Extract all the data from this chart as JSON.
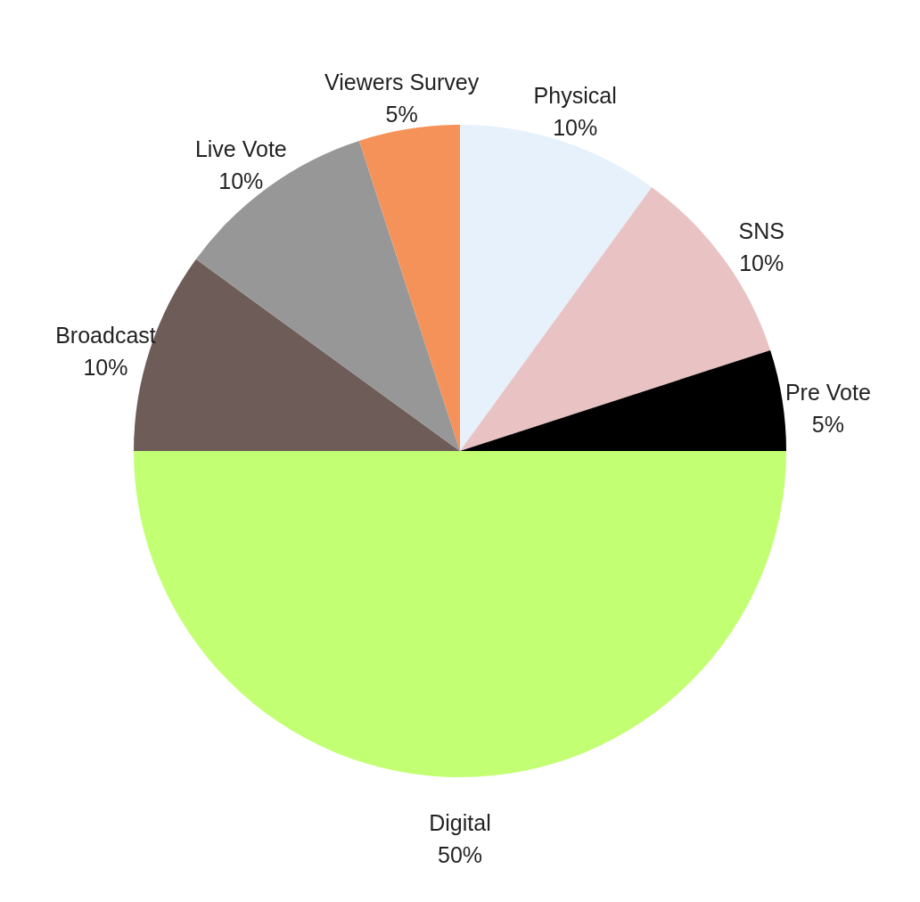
{
  "chart_data": {
    "type": "pie",
    "categories": [
      "Physical",
      "SNS",
      "Pre Vote",
      "Digital",
      "Broadcast",
      "Live Vote",
      "Viewers Survey"
    ],
    "values": [
      10,
      10,
      5,
      50,
      10,
      10,
      5
    ],
    "value_labels": [
      "10%",
      "10%",
      "5%",
      "50%",
      "10%",
      "10%",
      "5%"
    ],
    "colors": [
      "#e6f1fb",
      "#e9c2c3",
      "#000000",
      "#c2ff73",
      "#6e5c59",
      "#979797",
      "#f59259"
    ]
  }
}
